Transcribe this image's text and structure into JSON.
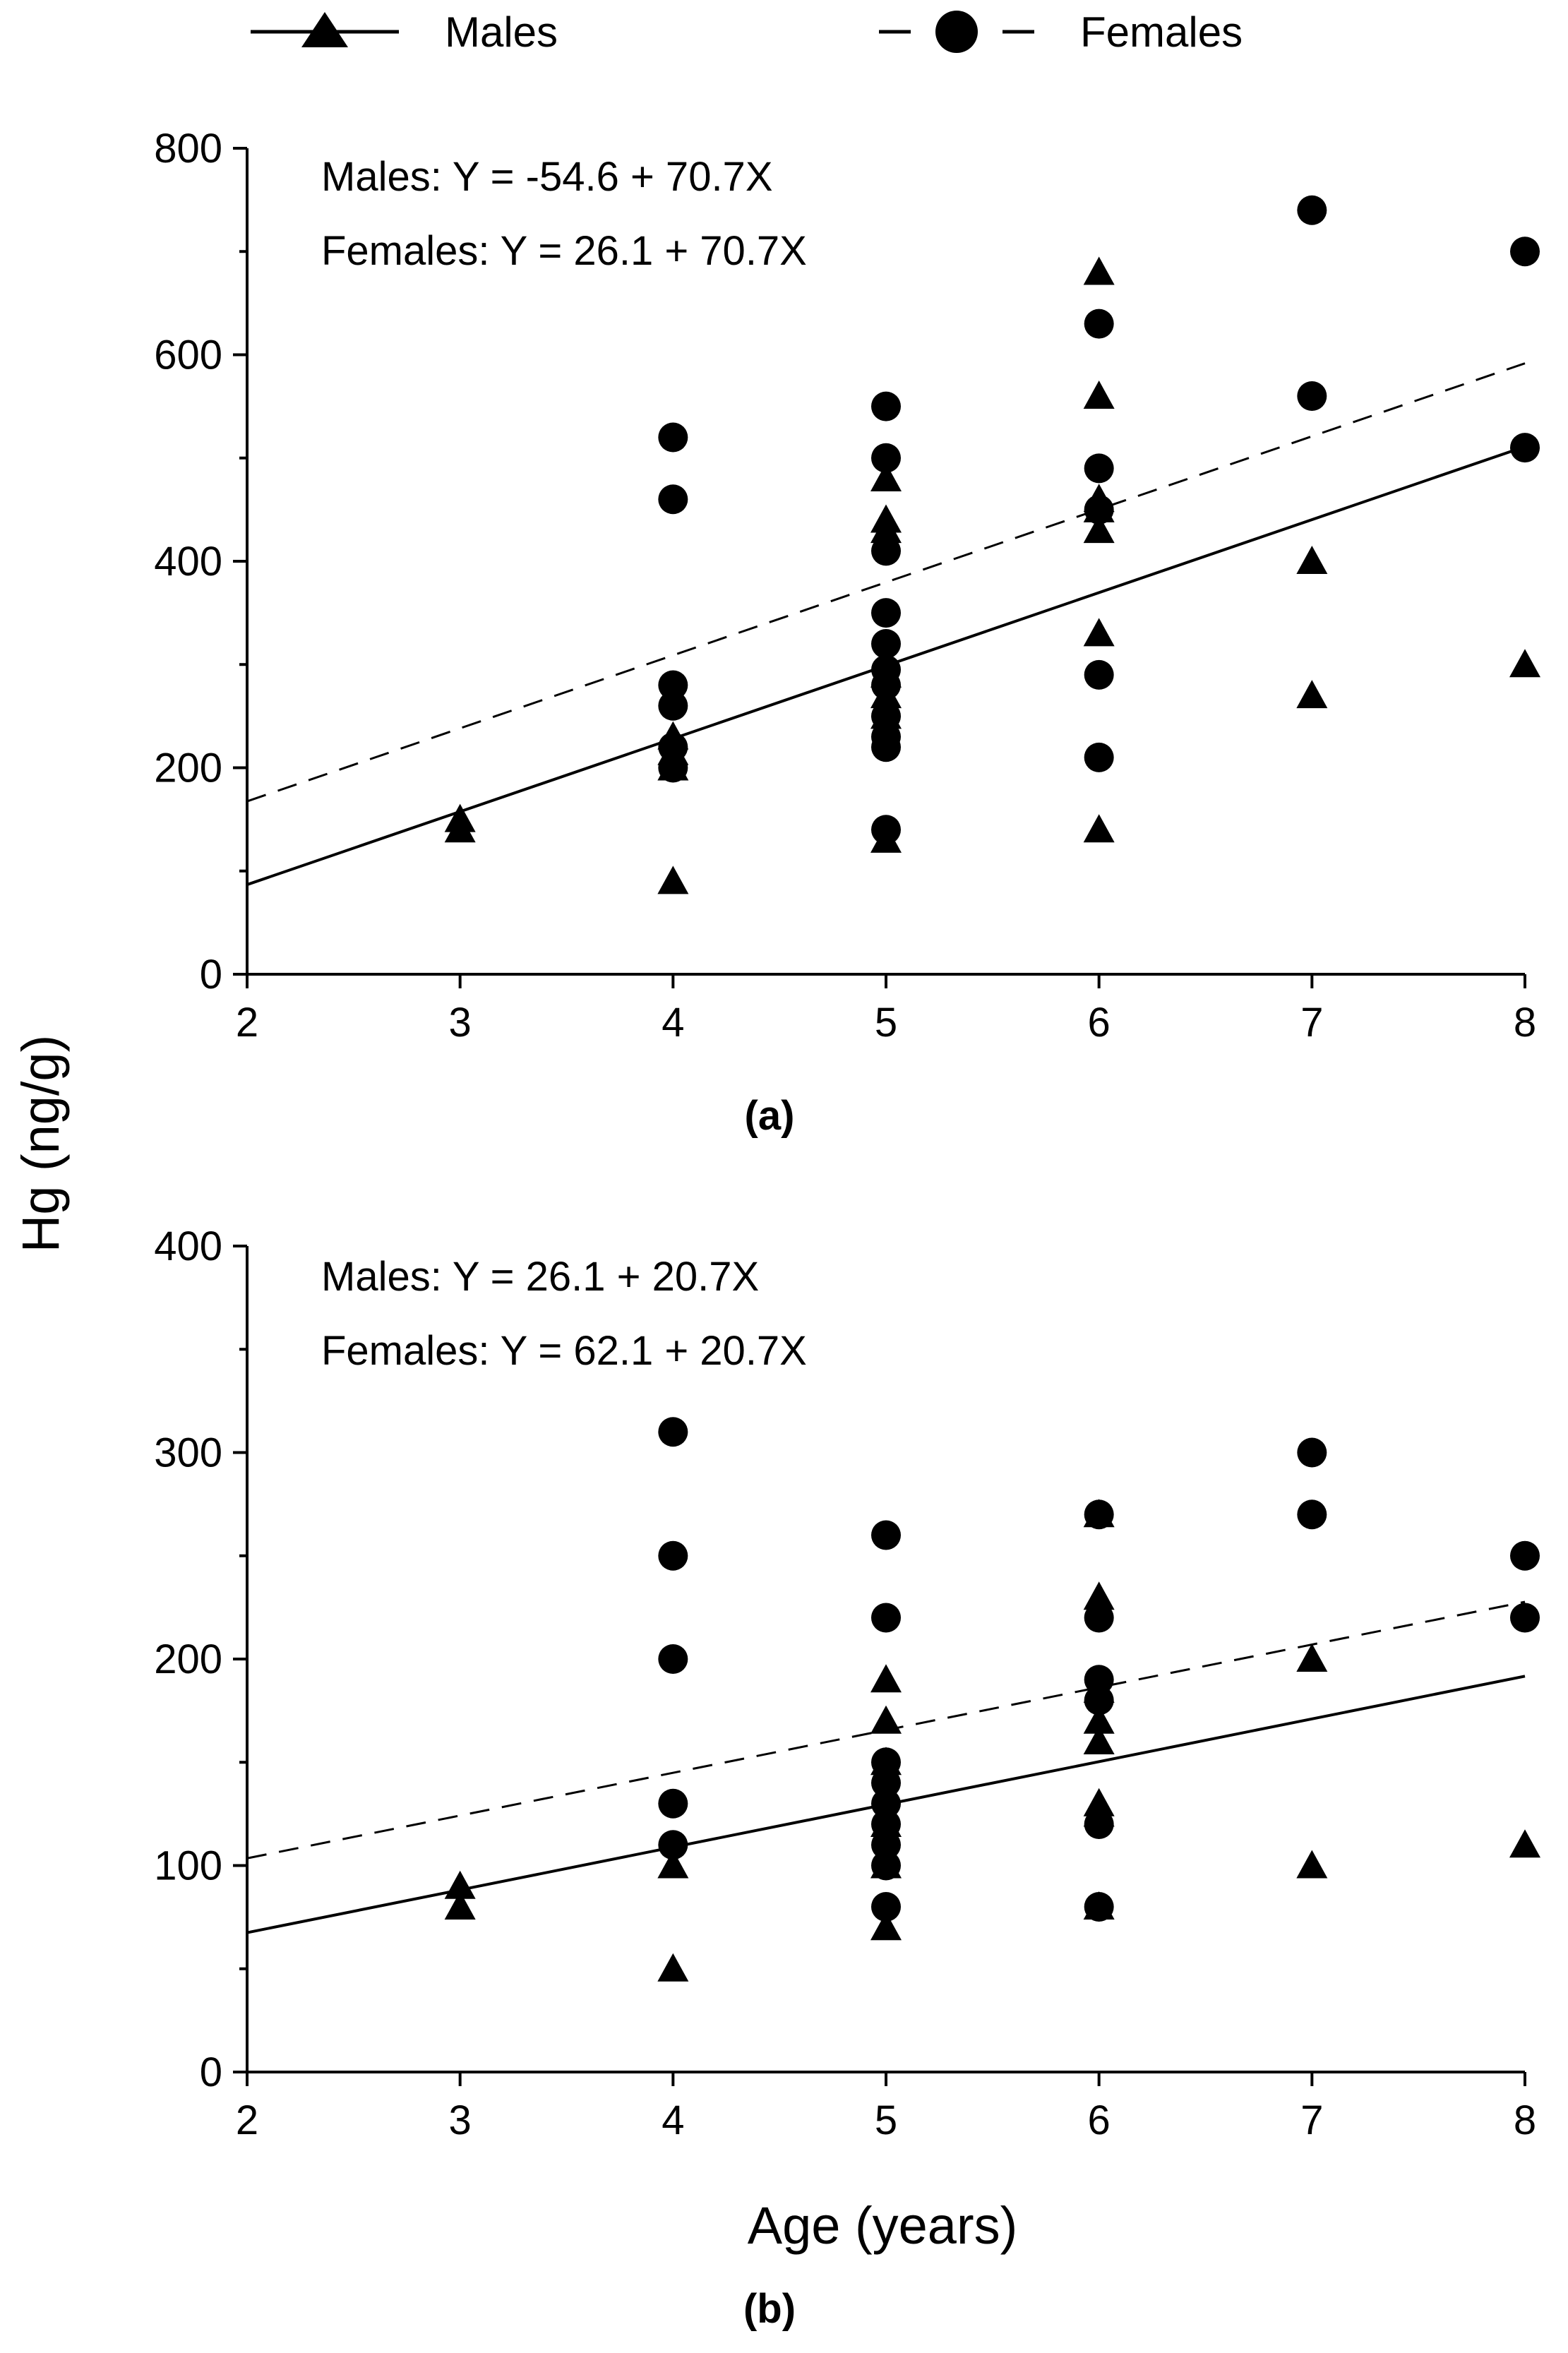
{
  "legend": {
    "males_label": "Males",
    "females_label": "Females"
  },
  "shared": {
    "ylabel": "Hg (ng/g)",
    "xlabel": "Age (years)"
  },
  "chart_data": [
    {
      "type": "scatter",
      "panel_label": "(a)",
      "xlim": [
        2,
        8
      ],
      "ylim": [
        0,
        800
      ],
      "x_ticks": [
        "2",
        "3",
        "4",
        "5",
        "6",
        "7",
        "8"
      ],
      "y_ticks": [
        "0",
        "200",
        "400",
        "600",
        "800"
      ],
      "equations": {
        "males": "Males:  Y = -54.6 + 70.7X",
        "females": "Females:  Y = 26.1 + 70.7X"
      },
      "fit_lines": {
        "males": {
          "intercept": -54.6,
          "slope": 70.7
        },
        "females": {
          "intercept": 26.1,
          "slope": 70.7
        }
      },
      "series": [
        {
          "name": "Males",
          "marker": "triangle",
          "points": [
            [
              3,
              140
            ],
            [
              3,
              150
            ],
            [
              4,
              90
            ],
            [
              4,
              200
            ],
            [
              4,
              215
            ],
            [
              4,
              230
            ],
            [
              5,
              130
            ],
            [
              5,
              250
            ],
            [
              5,
              270
            ],
            [
              5,
              290
            ],
            [
              5,
              430
            ],
            [
              5,
              440
            ],
            [
              5,
              480
            ],
            [
              6,
              140
            ],
            [
              6,
              330
            ],
            [
              6,
              430
            ],
            [
              6,
              450
            ],
            [
              6,
              460
            ],
            [
              6,
              560
            ],
            [
              6,
              680
            ],
            [
              7,
              270
            ],
            [
              7,
              400
            ],
            [
              8,
              300
            ]
          ]
        },
        {
          "name": "Females",
          "marker": "circle",
          "points": [
            [
              4,
              200
            ],
            [
              4,
              220
            ],
            [
              4,
              260
            ],
            [
              4,
              280
            ],
            [
              4,
              460
            ],
            [
              4,
              520
            ],
            [
              5,
              140
            ],
            [
              5,
              220
            ],
            [
              5,
              230
            ],
            [
              5,
              250
            ],
            [
              5,
              280
            ],
            [
              5,
              295
            ],
            [
              5,
              320
            ],
            [
              5,
              350
            ],
            [
              5,
              410
            ],
            [
              5,
              500
            ],
            [
              5,
              550
            ],
            [
              6,
              210
            ],
            [
              6,
              290
            ],
            [
              6,
              450
            ],
            [
              6,
              490
            ],
            [
              6,
              630
            ],
            [
              7,
              560
            ],
            [
              7,
              740
            ],
            [
              8,
              510
            ],
            [
              8,
              700
            ]
          ]
        }
      ]
    },
    {
      "type": "scatter",
      "panel_label": "(b)",
      "xlim": [
        2,
        8
      ],
      "ylim": [
        0,
        400
      ],
      "x_ticks": [
        "2",
        "3",
        "4",
        "5",
        "6",
        "7",
        "8"
      ],
      "y_ticks": [
        "0",
        "100",
        "200",
        "300",
        "400"
      ],
      "equations": {
        "males": "Males:  Y = 26.1 + 20.7X",
        "females": "Females:  Y = 62.1 + 20.7X"
      },
      "fit_lines": {
        "males": {
          "intercept": 26.1,
          "slope": 20.7
        },
        "females": {
          "intercept": 62.1,
          "slope": 20.7
        }
      },
      "series": [
        {
          "name": "Males",
          "marker": "triangle",
          "points": [
            [
              3,
              80
            ],
            [
              3,
              90
            ],
            [
              4,
              50
            ],
            [
              4,
              100
            ],
            [
              5,
              70
            ],
            [
              5,
              100
            ],
            [
              5,
              120
            ],
            [
              5,
              150
            ],
            [
              5,
              170
            ],
            [
              5,
              190
            ],
            [
              6,
              80
            ],
            [
              6,
              125
            ],
            [
              6,
              130
            ],
            [
              6,
              160
            ],
            [
              6,
              170
            ],
            [
              6,
              185
            ],
            [
              6,
              230
            ],
            [
              6,
              270
            ],
            [
              7,
              100
            ],
            [
              7,
              200
            ],
            [
              8,
              110
            ]
          ]
        },
        {
          "name": "Females",
          "marker": "circle",
          "points": [
            [
              4,
              110
            ],
            [
              4,
              130
            ],
            [
              4,
              200
            ],
            [
              4,
              250
            ],
            [
              4,
              310
            ],
            [
              5,
              80
            ],
            [
              5,
              100
            ],
            [
              5,
              110
            ],
            [
              5,
              120
            ],
            [
              5,
              130
            ],
            [
              5,
              140
            ],
            [
              5,
              150
            ],
            [
              5,
              220
            ],
            [
              5,
              260
            ],
            [
              6,
              80
            ],
            [
              6,
              120
            ],
            [
              6,
              180
            ],
            [
              6,
              190
            ],
            [
              6,
              220
            ],
            [
              6,
              270
            ],
            [
              7,
              270
            ],
            [
              7,
              300
            ],
            [
              8,
              220
            ],
            [
              8,
              250
            ]
          ]
        }
      ]
    }
  ]
}
